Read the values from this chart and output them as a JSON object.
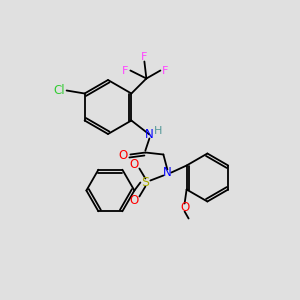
{
  "background_color": "#e0e0e0",
  "colors": {
    "F": "#ff44ff",
    "Cl": "#33cc33",
    "N": "#0000ff",
    "H": "#559999",
    "O": "#ff0000",
    "S": "#aaaa00",
    "C": "#000000",
    "bond": "#000000"
  },
  "figsize": [
    3.0,
    3.0
  ],
  "dpi": 100
}
